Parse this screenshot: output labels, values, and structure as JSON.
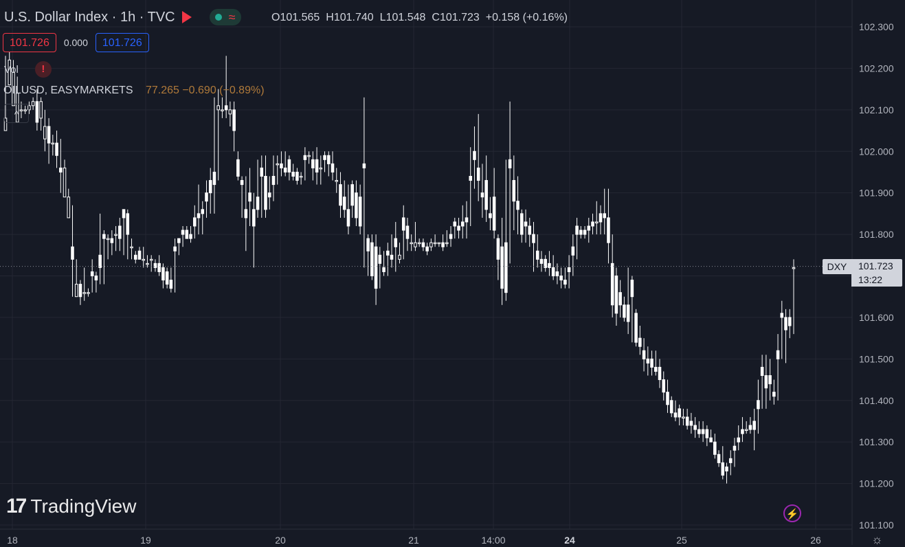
{
  "header": {
    "title": "U.S. Dollar Index · 1h · TVC",
    "flag_icon": "flag-icon",
    "live_icon": "live-dot-icon",
    "wave_icon": "wave-icon",
    "ohlc": {
      "open": "O101.565",
      "high": "H101.740",
      "low": "L101.548",
      "close": "C101.723",
      "change": "+0.158 (+0.16%)"
    }
  },
  "trade": {
    "sell": "101.726",
    "spread": "0.000",
    "buy": "101.726"
  },
  "indicators": {
    "vol_label": "Vol",
    "vol_warning": "!",
    "compare_symbol": "OILUSD, EASYMARKETS",
    "compare_value": "77.265 −0.690 (−0.89%)",
    "collapse": "^"
  },
  "logo": {
    "text": "TradingView"
  },
  "price_label": {
    "symbol": "DXY",
    "price": "101.723",
    "countdown": "13:22"
  },
  "colors": {
    "background": "#161a25",
    "grid": "#242733",
    "candle": "#ffffff",
    "text": "#b2b5be"
  },
  "chart_data": {
    "type": "candlestick",
    "y_ticks": [
      "102.300",
      "102.200",
      "102.100",
      "102.000",
      "101.900",
      "101.800",
      "101.700",
      "101.600",
      "101.500",
      "101.400",
      "101.300",
      "101.200",
      "101.100"
    ],
    "x_ticks": [
      "18",
      "19",
      "20",
      "21",
      "14:00",
      "24",
      "25",
      "26"
    ],
    "bold_x_ticks": [
      "24"
    ],
    "ylim": [
      101.09,
      102.35
    ],
    "grid": true,
    "candles": [
      [
        102.05,
        102.21,
        102.08,
        102.23
      ],
      [
        102.16,
        102.16,
        102.22,
        102.24
      ],
      [
        102.11,
        102.13,
        102.19,
        102.22
      ],
      [
        102.07,
        102.08,
        102.14,
        102.18
      ],
      [
        102.1,
        102.08,
        102.1,
        102.12
      ],
      [
        102.1,
        102.09,
        102.1,
        102.11
      ],
      [
        102.1,
        102.09,
        102.11,
        102.12
      ],
      [
        102.11,
        102.1,
        102.12,
        102.13
      ],
      [
        102.12,
        102.05,
        102.07,
        102.15
      ],
      [
        102.08,
        102.05,
        102.12,
        102.13
      ],
      [
        102.03,
        102.0,
        102.06,
        102.1
      ],
      [
        102.06,
        101.97,
        102.02,
        102.08
      ],
      [
        102.02,
        101.99,
        102.02,
        102.04
      ],
      [
        102.02,
        101.96,
        101.99,
        102.05
      ],
      [
        101.96,
        101.9,
        101.95,
        102.03
      ],
      [
        101.89,
        101.91,
        101.96,
        101.98
      ],
      [
        101.84,
        101.88,
        101.89,
        101.91
      ],
      [
        101.77,
        101.65,
        101.74,
        101.87
      ],
      [
        101.65,
        101.65,
        101.68,
        101.74
      ],
      [
        101.68,
        101.63,
        101.65,
        101.69
      ],
      [
        101.66,
        101.64,
        101.66,
        101.72
      ],
      [
        101.66,
        101.65,
        101.66,
        101.67
      ],
      [
        101.71,
        101.66,
        101.7,
        101.74
      ],
      [
        101.7,
        101.66,
        101.69,
        101.71
      ],
      [
        101.75,
        101.68,
        101.72,
        101.85
      ],
      [
        101.8,
        101.68,
        101.79,
        101.81
      ],
      [
        101.79,
        101.74,
        101.79,
        101.8
      ],
      [
        101.79,
        101.75,
        101.78,
        101.81
      ],
      [
        101.8,
        101.76,
        101.8,
        101.82
      ],
      [
        101.82,
        101.76,
        101.79,
        101.84
      ],
      [
        101.86,
        101.75,
        101.84,
        101.86
      ],
      [
        101.85,
        101.74,
        101.8,
        101.86
      ],
      [
        101.77,
        101.74,
        101.77,
        101.79
      ],
      [
        101.75,
        101.73,
        101.74,
        101.76
      ],
      [
        101.76,
        101.74,
        101.74,
        101.77
      ],
      [
        101.74,
        101.72,
        101.74,
        101.77
      ],
      [
        101.73,
        101.72,
        101.73,
        101.75
      ],
      [
        101.74,
        101.71,
        101.74,
        101.75
      ],
      [
        101.73,
        101.71,
        101.72,
        101.74
      ],
      [
        101.73,
        101.7,
        101.71,
        101.75
      ],
      [
        101.72,
        101.67,
        101.69,
        101.73
      ],
      [
        101.71,
        101.67,
        101.68,
        101.72
      ],
      [
        101.69,
        101.66,
        101.67,
        101.72
      ],
      [
        101.77,
        101.66,
        101.76,
        101.79
      ],
      [
        101.79,
        101.75,
        101.78,
        101.79
      ],
      [
        101.81,
        101.77,
        101.8,
        101.82
      ],
      [
        101.81,
        101.79,
        101.79,
        101.82
      ],
      [
        101.8,
        101.78,
        101.79,
        101.82
      ],
      [
        101.84,
        101.79,
        101.82,
        101.87
      ],
      [
        101.85,
        101.8,
        101.84,
        101.92
      ],
      [
        101.86,
        101.8,
        101.85,
        101.88
      ],
      [
        101.9,
        101.84,
        101.88,
        101.93
      ],
      [
        101.93,
        101.85,
        101.9,
        101.96
      ],
      [
        101.95,
        101.85,
        101.92,
        102.13
      ],
      [
        102.1,
        101.93,
        102.11,
        102.15
      ],
      [
        102.1,
        102.08,
        102.1,
        102.13
      ],
      [
        102.11,
        102.08,
        102.1,
        102.23
      ],
      [
        102.09,
        102.06,
        102.1,
        102.12
      ],
      [
        102.1,
        102.0,
        102.05,
        102.12
      ],
      [
        101.98,
        101.93,
        101.94,
        102.0
      ],
      [
        101.93,
        101.84,
        101.92,
        101.94
      ],
      [
        101.86,
        101.76,
        101.84,
        101.94
      ],
      [
        101.9,
        101.82,
        101.88,
        101.96
      ],
      [
        101.86,
        101.72,
        101.82,
        101.9
      ],
      [
        101.89,
        101.84,
        101.86,
        101.98
      ],
      [
        101.96,
        101.84,
        101.94,
        101.99
      ],
      [
        101.94,
        101.84,
        101.86,
        101.99
      ],
      [
        101.9,
        101.86,
        101.89,
        101.94
      ],
      [
        101.94,
        101.88,
        101.92,
        101.99
      ],
      [
        101.97,
        101.92,
        101.97,
        101.99
      ],
      [
        101.97,
        101.94,
        101.96,
        102.0
      ],
      [
        101.96,
        101.94,
        101.95,
        102.0
      ],
      [
        101.98,
        101.93,
        101.95,
        101.99
      ],
      [
        101.95,
        101.93,
        101.94,
        101.97
      ],
      [
        101.95,
        101.92,
        101.93,
        101.96
      ],
      [
        101.94,
        101.92,
        101.94,
        101.95
      ],
      [
        101.99,
        101.93,
        101.98,
        102.01
      ],
      [
        101.99,
        101.97,
        101.99,
        102.0
      ],
      [
        101.98,
        101.93,
        101.96,
        102.0
      ],
      [
        101.98,
        101.92,
        101.95,
        102.01
      ],
      [
        101.96,
        101.92,
        101.96,
        101.99
      ],
      [
        101.99,
        101.95,
        101.98,
        102.0
      ],
      [
        101.99,
        101.94,
        101.97,
        102.0
      ],
      [
        101.97,
        101.93,
        101.95,
        102.0
      ],
      [
        101.93,
        101.9,
        101.93,
        101.96
      ],
      [
        101.92,
        101.84,
        101.87,
        101.95
      ],
      [
        101.89,
        101.84,
        101.86,
        101.93
      ],
      [
        101.86,
        101.8,
        101.82,
        101.92
      ],
      [
        101.92,
        101.84,
        101.87,
        101.93
      ],
      [
        101.9,
        101.82,
        101.84,
        101.93
      ],
      [
        101.89,
        101.8,
        101.82,
        101.92
      ],
      [
        101.97,
        101.72,
        101.96,
        102.13
      ],
      [
        101.79,
        101.7,
        101.76,
        101.8
      ],
      [
        101.78,
        101.69,
        101.7,
        101.8
      ],
      [
        101.77,
        101.63,
        101.67,
        101.8
      ],
      [
        101.75,
        101.67,
        101.73,
        101.77
      ],
      [
        101.72,
        101.7,
        101.71,
        101.76
      ],
      [
        101.76,
        101.7,
        101.75,
        101.78
      ],
      [
        101.75,
        101.72,
        101.74,
        101.8
      ],
      [
        101.79,
        101.71,
        101.77,
        101.83
      ],
      [
        101.74,
        101.73,
        101.75,
        101.78
      ],
      [
        101.84,
        101.74,
        101.81,
        101.87
      ],
      [
        101.82,
        101.76,
        101.79,
        101.84
      ],
      [
        101.78,
        101.76,
        101.78,
        101.8
      ],
      [
        101.77,
        101.76,
        101.78,
        101.83
      ],
      [
        101.78,
        101.77,
        101.78,
        101.79
      ],
      [
        101.78,
        101.76,
        101.77,
        101.79
      ],
      [
        101.77,
        101.75,
        101.76,
        101.78
      ],
      [
        101.77,
        101.76,
        101.78,
        101.79
      ],
      [
        101.78,
        101.77,
        101.78,
        101.8
      ],
      [
        101.78,
        101.77,
        101.78,
        101.78
      ],
      [
        101.78,
        101.76,
        101.77,
        101.8
      ],
      [
        101.78,
        101.77,
        101.78,
        101.81
      ],
      [
        101.8,
        101.77,
        101.79,
        101.82
      ],
      [
        101.83,
        101.79,
        101.82,
        101.84
      ],
      [
        101.82,
        101.79,
        101.81,
        101.84
      ],
      [
        101.83,
        101.79,
        101.82,
        101.87
      ],
      [
        101.84,
        101.79,
        101.83,
        101.88
      ],
      [
        101.94,
        101.82,
        101.93,
        102.01
      ],
      [
        102.0,
        101.91,
        101.98,
        102.06
      ],
      [
        101.96,
        101.88,
        101.93,
        102.09
      ],
      [
        101.9,
        101.84,
        101.89,
        101.97
      ],
      [
        101.93,
        101.83,
        101.86,
        101.99
      ],
      [
        101.85,
        101.81,
        101.84,
        101.89
      ],
      [
        101.89,
        101.79,
        101.81,
        101.96
      ],
      [
        101.79,
        101.69,
        101.74,
        101.8
      ],
      [
        101.77,
        101.63,
        101.67,
        101.84
      ],
      [
        101.78,
        101.64,
        101.66,
        101.98
      ],
      [
        101.98,
        101.73,
        101.96,
        102.12
      ],
      [
        101.93,
        101.81,
        101.88,
        101.99
      ],
      [
        101.88,
        101.8,
        101.86,
        101.94
      ],
      [
        101.85,
        101.78,
        101.8,
        101.86
      ],
      [
        101.83,
        101.78,
        101.82,
        101.86
      ],
      [
        101.82,
        101.77,
        101.8,
        101.84
      ],
      [
        101.8,
        101.71,
        101.78,
        101.83
      ],
      [
        101.76,
        101.72,
        101.74,
        101.8
      ],
      [
        101.74,
        101.71,
        101.73,
        101.76
      ],
      [
        101.74,
        101.71,
        101.72,
        101.75
      ],
      [
        101.73,
        101.7,
        101.72,
        101.76
      ],
      [
        101.72,
        101.69,
        101.7,
        101.75
      ],
      [
        101.71,
        101.68,
        101.7,
        101.73
      ],
      [
        101.7,
        101.67,
        101.69,
        101.72
      ],
      [
        101.69,
        101.67,
        101.68,
        101.72
      ],
      [
        101.72,
        101.67,
        101.71,
        101.75
      ],
      [
        101.77,
        101.7,
        101.75,
        101.8
      ],
      [
        101.82,
        101.74,
        101.8,
        101.84
      ],
      [
        101.81,
        101.79,
        101.8,
        101.82
      ],
      [
        101.81,
        101.79,
        101.8,
        101.82
      ],
      [
        101.82,
        101.78,
        101.81,
        101.84
      ],
      [
        101.83,
        101.8,
        101.82,
        101.85
      ],
      [
        101.83,
        101.8,
        101.83,
        101.88
      ],
      [
        101.85,
        101.8,
        101.83,
        101.87
      ],
      [
        101.85,
        101.8,
        101.84,
        101.91
      ],
      [
        101.84,
        101.73,
        101.78,
        101.91
      ],
      [
        101.73,
        101.6,
        101.63,
        101.8
      ],
      [
        101.7,
        101.58,
        101.61,
        101.72
      ],
      [
        101.66,
        101.6,
        101.63,
        101.69
      ],
      [
        101.63,
        101.59,
        101.6,
        101.65
      ],
      [
        101.63,
        101.56,
        101.59,
        101.72
      ],
      [
        101.69,
        101.54,
        101.65,
        101.7
      ],
      [
        101.61,
        101.53,
        101.54,
        101.62
      ],
      [
        101.55,
        101.51,
        101.53,
        101.58
      ],
      [
        101.52,
        101.47,
        101.5,
        101.55
      ],
      [
        101.5,
        101.46,
        101.49,
        101.53
      ],
      [
        101.5,
        101.46,
        101.48,
        101.52
      ],
      [
        101.48,
        101.46,
        101.47,
        101.52
      ],
      [
        101.48,
        101.43,
        101.45,
        101.5
      ],
      [
        101.45,
        101.4,
        101.42,
        101.47
      ],
      [
        101.42,
        101.37,
        101.39,
        101.45
      ],
      [
        101.4,
        101.36,
        101.37,
        101.41
      ],
      [
        101.37,
        101.35,
        101.36,
        101.4
      ],
      [
        101.38,
        101.34,
        101.36,
        101.39
      ],
      [
        101.36,
        101.34,
        101.36,
        101.38
      ],
      [
        101.36,
        101.33,
        101.34,
        101.38
      ],
      [
        101.35,
        101.32,
        101.34,
        101.37
      ],
      [
        101.34,
        101.31,
        101.33,
        101.36
      ],
      [
        101.33,
        101.31,
        101.32,
        101.35
      ],
      [
        101.33,
        101.3,
        101.32,
        101.35
      ],
      [
        101.33,
        101.29,
        101.31,
        101.34
      ],
      [
        101.31,
        101.3,
        101.3,
        101.33
      ],
      [
        101.3,
        101.26,
        101.27,
        101.32
      ],
      [
        101.27,
        101.24,
        101.25,
        101.28
      ],
      [
        101.25,
        101.21,
        101.22,
        101.29
      ],
      [
        101.24,
        101.2,
        101.23,
        101.25
      ],
      [
        101.26,
        101.22,
        101.25,
        101.28
      ],
      [
        101.29,
        101.24,
        101.28,
        101.31
      ],
      [
        101.31,
        101.28,
        101.3,
        101.34
      ],
      [
        101.33,
        101.3,
        101.32,
        101.36
      ],
      [
        101.33,
        101.32,
        101.33,
        101.35
      ],
      [
        101.34,
        101.32,
        101.33,
        101.36
      ],
      [
        101.35,
        101.28,
        101.33,
        101.38
      ],
      [
        101.4,
        101.32,
        101.38,
        101.45
      ],
      [
        101.48,
        101.38,
        101.46,
        101.51
      ],
      [
        101.46,
        101.38,
        101.43,
        101.51
      ],
      [
        101.46,
        101.4,
        101.44,
        101.5
      ],
      [
        101.42,
        101.39,
        101.41,
        101.45
      ],
      [
        101.52,
        101.4,
        101.5,
        101.56
      ],
      [
        101.61,
        101.5,
        101.6,
        101.64
      ],
      [
        101.6,
        101.49,
        101.57,
        101.62
      ],
      [
        101.6,
        101.55,
        101.58,
        101.62
      ],
      [
        101.72,
        101.56,
        101.72,
        101.74
      ]
    ]
  }
}
